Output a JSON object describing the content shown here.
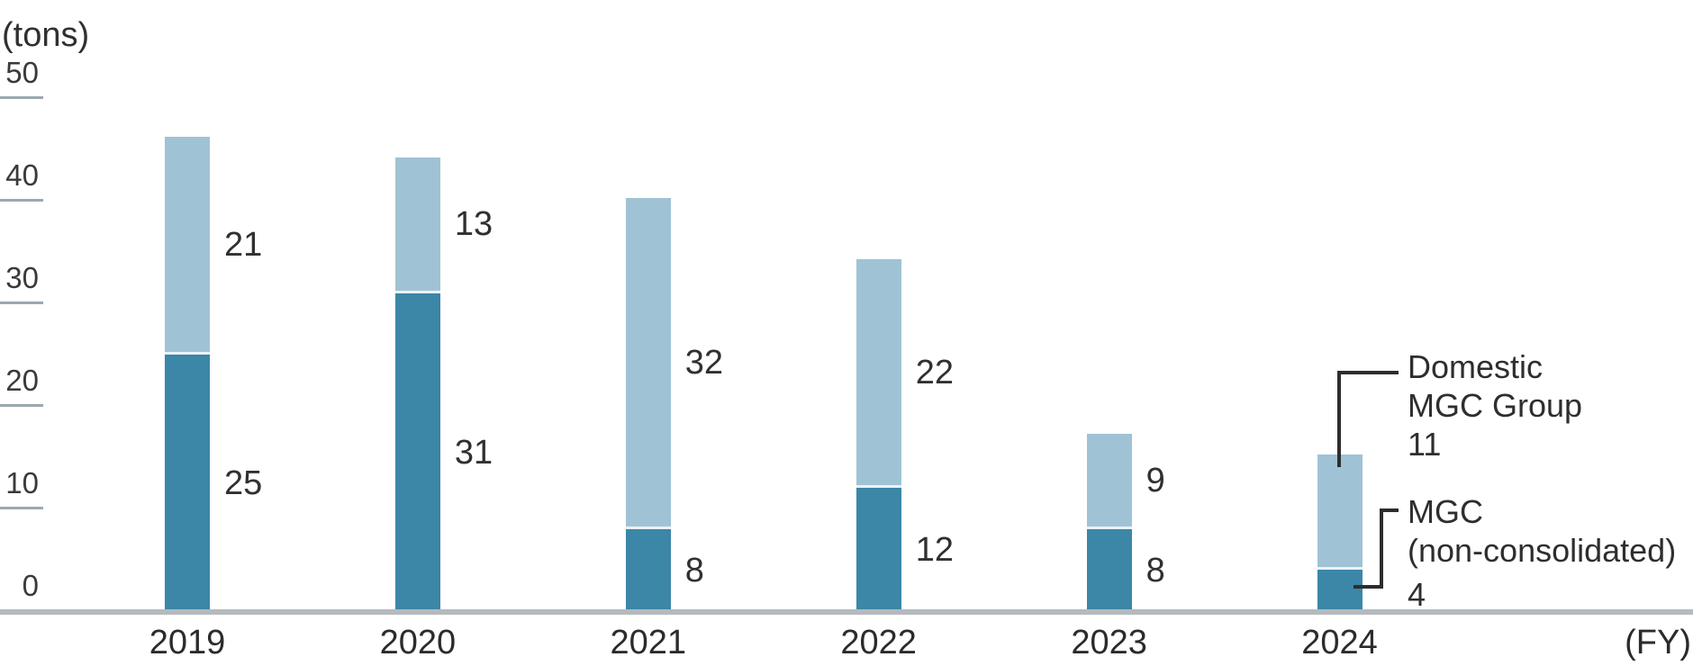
{
  "unit_label": "(tons)",
  "fy_label": "(FY)",
  "colors": {
    "bar_dark": "#3c86a7",
    "bar_light": "#9fc3d5",
    "segment_divider": "#eaf2f6",
    "axis_line": "#b4babe",
    "tick_line": "#9aa9b0",
    "text": "#303030",
    "callout_line": "#2d2d2d"
  },
  "chart_data": {
    "type": "bar",
    "stacked": true,
    "title": "",
    "xlabel": "(FY)",
    "ylabel": "(tons)",
    "ylim": [
      0,
      50
    ],
    "y_ticks": [
      0,
      10,
      20,
      30,
      40,
      50
    ],
    "grid": false,
    "legend_position": "callouts-at-last-bar",
    "categories": [
      "2019",
      "2020",
      "2021",
      "2022",
      "2023",
      "2024"
    ],
    "series": [
      {
        "name": "MGC (non-consolidated)",
        "color": "#3c86a7",
        "values": [
          25,
          31,
          8,
          12,
          8,
          4
        ]
      },
      {
        "name": "Domestic MGC Group",
        "color": "#9fc3d5",
        "values": [
          21,
          13,
          32,
          22,
          9,
          11
        ]
      }
    ]
  },
  "annotations": {
    "light": {
      "line1": "Domestic",
      "line2": "MGC Group"
    },
    "dark": {
      "line1": "MGC",
      "line2": "(non-consolidated)"
    }
  }
}
